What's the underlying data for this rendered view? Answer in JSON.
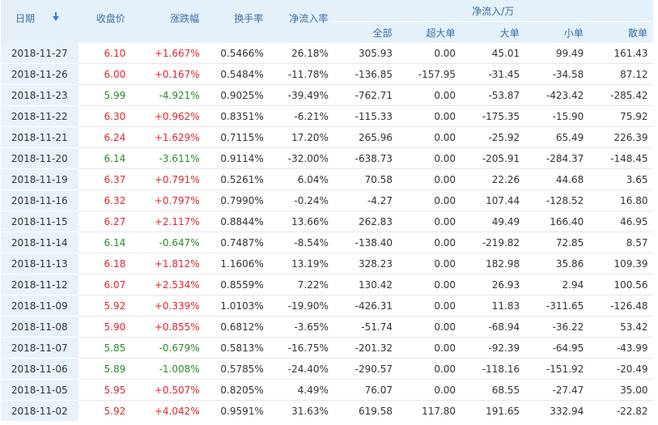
{
  "header": {
    "date": "日期",
    "close": "收盘价",
    "change": "涨跌幅",
    "turnover": "换手率",
    "inflow_rate": "净流入率",
    "inflow_group": "净流入/万",
    "all": "全部",
    "xlarge": "超大单",
    "large": "大单",
    "small": "小单",
    "retail": "散单"
  },
  "rows": [
    {
      "date": "2018-11-27",
      "close": "6.10",
      "change": "+1.667%",
      "turnover": "0.5466%",
      "rate": "26.18%",
      "all": "305.93",
      "xl": "0.00",
      "l": "45.01",
      "s": "99.49",
      "r": "161.43",
      "dir": "up"
    },
    {
      "date": "2018-11-26",
      "close": "6.00",
      "change": "+0.167%",
      "turnover": "0.5484%",
      "rate": "-11.78%",
      "all": "-136.85",
      "xl": "-157.95",
      "l": "-31.45",
      "s": "-34.58",
      "r": "87.12",
      "dir": "up"
    },
    {
      "date": "2018-11-23",
      "close": "5.99",
      "change": "-4.921%",
      "turnover": "0.9025%",
      "rate": "-39.49%",
      "all": "-762.71",
      "xl": "0.00",
      "l": "-53.87",
      "s": "-423.42",
      "r": "-285.42",
      "dir": "down"
    },
    {
      "date": "2018-11-22",
      "close": "6.30",
      "change": "+0.962%",
      "turnover": "0.8351%",
      "rate": "-6.21%",
      "all": "-115.33",
      "xl": "0.00",
      "l": "-175.35",
      "s": "-15.90",
      "r": "75.92",
      "dir": "up"
    },
    {
      "date": "2018-11-21",
      "close": "6.24",
      "change": "+1.629%",
      "turnover": "0.7115%",
      "rate": "17.20%",
      "all": "265.96",
      "xl": "0.00",
      "l": "-25.92",
      "s": "65.49",
      "r": "226.39",
      "dir": "up"
    },
    {
      "date": "2018-11-20",
      "close": "6.14",
      "change": "-3.611%",
      "turnover": "0.9114%",
      "rate": "-32.00%",
      "all": "-638.73",
      "xl": "0.00",
      "l": "-205.91",
      "s": "-284.37",
      "r": "-148.45",
      "dir": "down"
    },
    {
      "date": "2018-11-19",
      "close": "6.37",
      "change": "+0.791%",
      "turnover": "0.5261%",
      "rate": "6.04%",
      "all": "70.58",
      "xl": "0.00",
      "l": "22.26",
      "s": "44.68",
      "r": "3.65",
      "dir": "up"
    },
    {
      "date": "2018-11-16",
      "close": "6.32",
      "change": "+0.797%",
      "turnover": "0.7990%",
      "rate": "-0.24%",
      "all": "-4.27",
      "xl": "0.00",
      "l": "107.44",
      "s": "-128.52",
      "r": "16.80",
      "dir": "up"
    },
    {
      "date": "2018-11-15",
      "close": "6.27",
      "change": "+2.117%",
      "turnover": "0.8844%",
      "rate": "13.66%",
      "all": "262.83",
      "xl": "0.00",
      "l": "49.49",
      "s": "166.40",
      "r": "46.95",
      "dir": "up"
    },
    {
      "date": "2018-11-14",
      "close": "6.14",
      "change": "-0.647%",
      "turnover": "0.7487%",
      "rate": "-8.54%",
      "all": "-138.40",
      "xl": "0.00",
      "l": "-219.82",
      "s": "72.85",
      "r": "8.57",
      "dir": "down"
    },
    {
      "date": "2018-11-13",
      "close": "6.18",
      "change": "+1.812%",
      "turnover": "1.1606%",
      "rate": "13.19%",
      "all": "328.23",
      "xl": "0.00",
      "l": "182.98",
      "s": "35.86",
      "r": "109.39",
      "dir": "up"
    },
    {
      "date": "2018-11-12",
      "close": "6.07",
      "change": "+2.534%",
      "turnover": "0.8559%",
      "rate": "7.22%",
      "all": "130.42",
      "xl": "0.00",
      "l": "26.93",
      "s": "2.94",
      "r": "100.56",
      "dir": "up"
    },
    {
      "date": "2018-11-09",
      "close": "5.92",
      "change": "+0.339%",
      "turnover": "1.0103%",
      "rate": "-19.90%",
      "all": "-426.31",
      "xl": "0.00",
      "l": "11.83",
      "s": "-311.65",
      "r": "-126.48",
      "dir": "up"
    },
    {
      "date": "2018-11-08",
      "close": "5.90",
      "change": "+0.855%",
      "turnover": "0.6812%",
      "rate": "-3.65%",
      "all": "-51.74",
      "xl": "0.00",
      "l": "-68.94",
      "s": "-36.22",
      "r": "53.42",
      "dir": "up"
    },
    {
      "date": "2018-11-07",
      "close": "5.85",
      "change": "-0.679%",
      "turnover": "0.5813%",
      "rate": "-16.75%",
      "all": "-201.32",
      "xl": "0.00",
      "l": "-92.39",
      "s": "-64.95",
      "r": "-43.99",
      "dir": "down"
    },
    {
      "date": "2018-11-06",
      "close": "5.89",
      "change": "-1.008%",
      "turnover": "0.5785%",
      "rate": "-24.40%",
      "all": "-290.57",
      "xl": "0.00",
      "l": "-118.16",
      "s": "-151.92",
      "r": "-20.49",
      "dir": "down"
    },
    {
      "date": "2018-11-05",
      "close": "5.95",
      "change": "+0.507%",
      "turnover": "0.8205%",
      "rate": "4.49%",
      "all": "76.07",
      "xl": "0.00",
      "l": "68.55",
      "s": "-27.47",
      "r": "35.00",
      "dir": "up"
    },
    {
      "date": "2018-11-02",
      "close": "5.92",
      "change": "+4.042%",
      "turnover": "0.9591%",
      "rate": "31.63%",
      "all": "619.58",
      "xl": "117.80",
      "l": "191.65",
      "s": "332.94",
      "r": "-22.82",
      "dir": "up"
    }
  ],
  "colors": {
    "up": "#e0262b",
    "down": "#2a8a2a",
    "header_bg": "#e4f1fb",
    "header_text": "#3a6fa3"
  },
  "icons": {
    "date_sort": "sort-down-arrow-icon"
  }
}
